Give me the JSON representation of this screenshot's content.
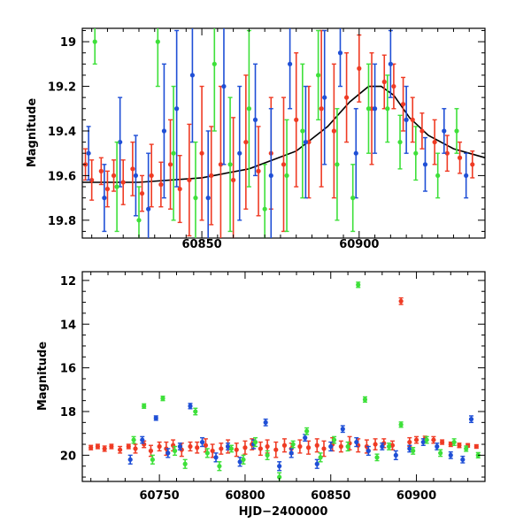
{
  "colors": {
    "blue": "#1f4fd6",
    "green": "#3ee03a",
    "red": "#ef3b24",
    "model": "#000000"
  },
  "chart_data": [
    {
      "type": "scatter",
      "title": "",
      "xlabel": "",
      "ylabel": "Magnitude",
      "xlim": [
        60812,
        60940
      ],
      "ylim": [
        19.88,
        18.94
      ],
      "inverted_y": true,
      "x_ticks": [
        60850,
        60900
      ],
      "y_ticks": [
        19.0,
        19.2,
        19.4,
        19.6,
        19.8
      ],
      "y_tick_labels": [
        "19",
        "19.2",
        "19.4",
        "19.6",
        "19.8"
      ],
      "grid": false,
      "model_curve": {
        "x": [
          60812,
          60830,
          60850,
          60865,
          60880,
          60890,
          60897,
          60903,
          60907,
          60911,
          60916,
          60922,
          60930,
          60940
        ],
        "y": [
          19.63,
          19.63,
          19.61,
          19.57,
          19.49,
          19.38,
          19.27,
          19.2,
          19.2,
          19.24,
          19.34,
          19.42,
          19.48,
          19.52
        ]
      },
      "series": [
        {
          "color_key": "red",
          "x": [
            60813,
            60815,
            60818,
            60820,
            60822,
            60825,
            60828,
            60831,
            60834,
            60837,
            60840,
            60843,
            60846,
            60850,
            60853,
            60856,
            60860,
            60864,
            60868,
            60872,
            60876,
            60880,
            60884,
            60888,
            60892,
            60896,
            60900,
            60904,
            60908,
            60911,
            60914,
            60917,
            60920,
            60924,
            60928,
            60932,
            60936
          ],
          "y": [
            19.55,
            19.62,
            19.58,
            19.66,
            19.6,
            19.63,
            19.57,
            19.68,
            19.6,
            19.64,
            19.55,
            19.66,
            19.62,
            19.5,
            19.6,
            19.55,
            19.62,
            19.45,
            19.58,
            19.5,
            19.55,
            19.35,
            19.45,
            19.3,
            19.4,
            19.25,
            19.12,
            19.3,
            19.18,
            19.2,
            19.28,
            19.35,
            19.4,
            19.45,
            19.5,
            19.52,
            19.55
          ],
          "err": [
            0.07,
            0.09,
            0.06,
            0.08,
            0.07,
            0.1,
            0.12,
            0.08,
            0.14,
            0.1,
            0.2,
            0.15,
            0.25,
            0.3,
            0.22,
            0.35,
            0.28,
            0.3,
            0.2,
            0.25,
            0.3,
            0.3,
            0.25,
            0.35,
            0.3,
            0.2,
            0.15,
            0.25,
            0.12,
            0.1,
            0.12,
            0.1,
            0.08,
            0.1,
            0.08,
            0.07,
            0.06
          ]
        },
        {
          "color_key": "blue",
          "x": [
            60814,
            60819,
            60824,
            60829,
            60833,
            60838,
            60842,
            60847,
            60852,
            60857,
            60862,
            60867,
            60872,
            60878,
            60883,
            60889,
            60894,
            60899,
            60905,
            60910,
            60915,
            60921,
            60927,
            60934
          ],
          "y": [
            19.5,
            19.7,
            19.45,
            19.6,
            19.75,
            19.4,
            19.3,
            19.15,
            19.7,
            19.2,
            19.5,
            19.35,
            19.6,
            19.1,
            19.45,
            19.25,
            19.05,
            19.5,
            19.3,
            19.1,
            19.35,
            19.55,
            19.4,
            19.6
          ],
          "err": [
            0.12,
            0.15,
            0.2,
            0.18,
            0.25,
            0.3,
            0.35,
            0.3,
            0.3,
            0.35,
            0.3,
            0.25,
            0.3,
            0.2,
            0.25,
            0.3,
            0.15,
            0.2,
            0.2,
            0.15,
            0.15,
            0.12,
            0.1,
            0.1
          ]
        },
        {
          "color_key": "green",
          "x": [
            60816,
            60823,
            60830,
            60836,
            60841,
            60848,
            60854,
            60859,
            60865,
            60870,
            60877,
            60882,
            60887,
            60893,
            60898,
            60903,
            60909,
            60913,
            60918,
            60925,
            60931
          ],
          "y": [
            19.0,
            19.65,
            19.8,
            19.0,
            19.5,
            19.7,
            19.1,
            19.55,
            19.3,
            19.75,
            19.6,
            19.4,
            19.15,
            19.55,
            19.7,
            19.3,
            19.3,
            19.45,
            19.5,
            19.6,
            19.4
          ],
          "err": [
            0.1,
            0.2,
            0.15,
            0.2,
            0.3,
            0.25,
            0.3,
            0.3,
            0.35,
            0.2,
            0.25,
            0.3,
            0.2,
            0.25,
            0.15,
            0.2,
            0.15,
            0.12,
            0.12,
            0.1,
            0.1
          ]
        }
      ]
    },
    {
      "type": "scatter",
      "title": "",
      "xlabel": "HJD−2400000",
      "ylabel": "Magnitude",
      "xlim": [
        60705,
        60940
      ],
      "ylim": [
        21.2,
        11.6
      ],
      "inverted_y": true,
      "x_ticks": [
        60750,
        60800,
        60850,
        60900
      ],
      "y_ticks": [
        12,
        14,
        16,
        18,
        20
      ],
      "y_tick_labels": [
        "12",
        "14",
        "16",
        "18",
        "20"
      ],
      "grid": false,
      "series": [
        {
          "color_key": "red",
          "x": [
            60710,
            60714,
            60718,
            60722,
            60727,
            60732,
            60736,
            60741,
            60745,
            60750,
            60754,
            60758,
            60763,
            60768,
            60772,
            60777,
            60781,
            60786,
            60790,
            60795,
            60800,
            60804,
            60809,
            60813,
            60818,
            60823,
            60827,
            60832,
            60837,
            60842,
            60846,
            60851,
            60856,
            60861,
            60866,
            60871,
            60876,
            60881,
            60886,
            60891,
            60896,
            60900,
            60905,
            60910,
            60915,
            60920,
            60925,
            60930,
            60935
          ],
          "y": [
            19.65,
            19.6,
            19.7,
            19.6,
            19.75,
            19.6,
            19.7,
            19.5,
            19.8,
            19.6,
            19.7,
            19.55,
            19.75,
            19.6,
            19.65,
            19.55,
            19.8,
            19.7,
            19.6,
            19.75,
            19.65,
            19.5,
            19.7,
            19.6,
            19.75,
            19.55,
            19.7,
            19.6,
            19.65,
            19.55,
            19.7,
            19.5,
            19.6,
            19.45,
            19.55,
            19.6,
            19.5,
            19.45,
            19.55,
            12.95,
            19.4,
            19.3,
            19.25,
            19.3,
            19.4,
            19.5,
            19.55,
            19.55,
            19.6
          ],
          "err": [
            0.1,
            0.1,
            0.12,
            0.1,
            0.15,
            0.1,
            0.2,
            0.15,
            0.25,
            0.2,
            0.3,
            0.25,
            0.3,
            0.2,
            0.25,
            0.3,
            0.3,
            0.25,
            0.3,
            0.3,
            0.3,
            0.25,
            0.3,
            0.3,
            0.35,
            0.3,
            0.25,
            0.3,
            0.3,
            0.3,
            0.35,
            0.3,
            0.25,
            0.3,
            0.3,
            0.3,
            0.25,
            0.2,
            0.2,
            0.15,
            0.2,
            0.15,
            0.12,
            0.15,
            0.1,
            0.1,
            0.1,
            0.08,
            0.08
          ]
        },
        {
          "color_key": "blue",
          "x": [
            60733,
            60740,
            60748,
            60755,
            60762,
            60768,
            60775,
            60783,
            60790,
            60797,
            60805,
            60812,
            60820,
            60827,
            60835,
            60842,
            60850,
            60857,
            60865,
            60872,
            60880,
            60888,
            60896,
            60904,
            60912,
            60920,
            60927,
            60932
          ],
          "y": [
            20.2,
            19.3,
            18.3,
            19.9,
            19.6,
            17.75,
            19.4,
            20.1,
            19.6,
            20.3,
            19.5,
            18.5,
            20.5,
            19.9,
            19.2,
            20.4,
            19.6,
            18.8,
            19.4,
            19.8,
            19.6,
            20.0,
            19.7,
            19.4,
            19.6,
            20.0,
            20.2,
            18.35
          ],
          "err": [
            0.2,
            0.15,
            0.1,
            0.2,
            0.15,
            0.12,
            0.2,
            0.2,
            0.15,
            0.2,
            0.2,
            0.15,
            0.2,
            0.2,
            0.15,
            0.2,
            0.2,
            0.15,
            0.2,
            0.2,
            0.15,
            0.2,
            0.15,
            0.15,
            0.15,
            0.15,
            0.15,
            0.15
          ]
        },
        {
          "color_key": "green",
          "x": [
            60735,
            60741,
            60746,
            60752,
            60759,
            60765,
            60771,
            60778,
            60785,
            60792,
            60799,
            60806,
            60813,
            60820,
            60828,
            60836,
            60844,
            60852,
            60860,
            60866,
            60870,
            60877,
            60884,
            60891,
            60898,
            60906,
            60914,
            60922,
            60929,
            60936
          ],
          "y": [
            19.3,
            17.75,
            20.2,
            17.4,
            19.8,
            20.4,
            18.0,
            19.9,
            20.5,
            19.7,
            20.2,
            19.4,
            20.0,
            21.0,
            19.5,
            18.9,
            20.1,
            19.3,
            19.6,
            12.2,
            17.45,
            20.1,
            19.6,
            18.6,
            19.8,
            19.3,
            19.9,
            19.4,
            19.7,
            20.0
          ],
          "err": [
            0.15,
            0.1,
            0.2,
            0.1,
            0.2,
            0.2,
            0.15,
            0.2,
            0.2,
            0.15,
            0.2,
            0.2,
            0.2,
            0.2,
            0.15,
            0.15,
            0.2,
            0.15,
            0.2,
            0.12,
            0.12,
            0.15,
            0.15,
            0.12,
            0.15,
            0.15,
            0.15,
            0.15,
            0.12,
            0.12
          ]
        }
      ]
    }
  ]
}
